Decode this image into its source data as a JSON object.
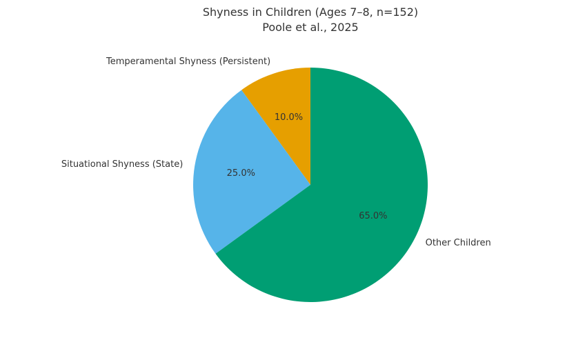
{
  "header": {
    "title": "Shyness in Children (Ages 7–8, n=152)",
    "subtitle": "Poole et al., 2025"
  },
  "chart_data": {
    "type": "pie",
    "title": "Shyness in Children (Ages 7–8, n=152)",
    "subtitle": "Poole et al., 2025",
    "start_angle_deg": 90,
    "direction": "counterclockwise",
    "background_color": "#ffffff",
    "text_color": "#333333",
    "legend": "none",
    "slices": [
      {
        "label": "Temperamental Shyness (Persistent)",
        "value_pct": 10.0,
        "pct_label": "10.0%",
        "color": "#E69F00"
      },
      {
        "label": "Situational Shyness (State)",
        "value_pct": 25.0,
        "pct_label": "25.0%",
        "color": "#56B4E9"
      },
      {
        "label": "Other Children",
        "value_pct": 65.0,
        "pct_label": "65.0%",
        "color": "#009E73"
      }
    ]
  }
}
